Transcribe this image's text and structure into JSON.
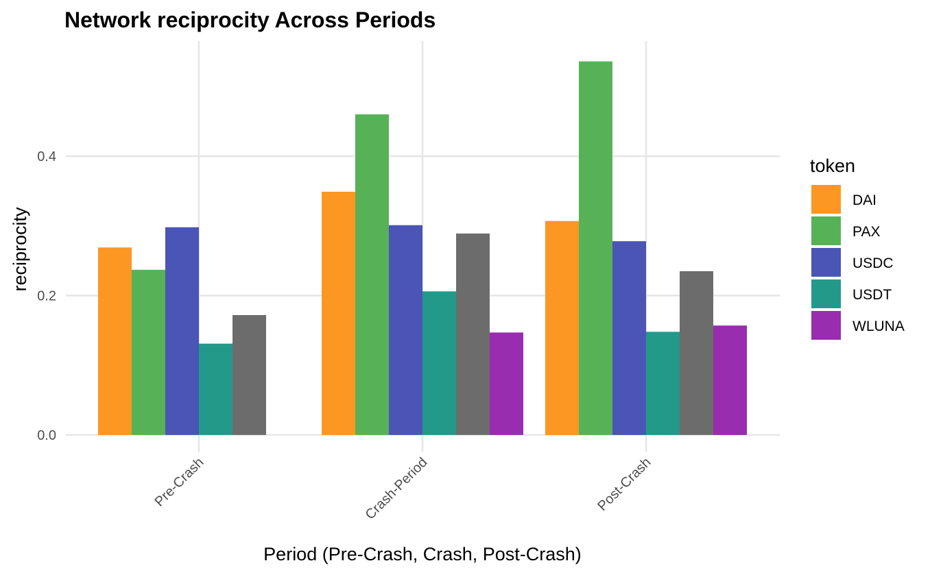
{
  "chart_data": {
    "type": "bar",
    "title": "Network reciprocity Across Periods",
    "xlabel": "Period (Pre-Crash, Crash, Post-Crash)",
    "ylabel": "reciprocity",
    "categories": [
      "Pre-Crash",
      "Crash-Period",
      "Post-Crash"
    ],
    "ylim": [
      0,
      0.56
    ],
    "yticks": [
      0.0,
      0.2,
      0.4
    ],
    "ytick_labels": [
      "0.0",
      "0.2",
      "0.4"
    ],
    "grid": true,
    "legend": {
      "title": "token",
      "position": "right"
    },
    "series": [
      {
        "name": "DAI",
        "color": "#FB9722",
        "values": [
          0.269,
          0.349,
          0.307
        ]
      },
      {
        "name": "PAX",
        "color": "#57B257",
        "values": [
          0.237,
          0.46,
          0.536
        ]
      },
      {
        "name": "USDC",
        "color": "#4A55B5",
        "values": [
          0.298,
          0.301,
          0.278
        ]
      },
      {
        "name": "USDT",
        "color": "#229989",
        "values": [
          0.131,
          0.206,
          0.148
        ]
      },
      {
        "name": "",
        "color": "#6C6C6C",
        "values": [
          0.172,
          0.289,
          0.235
        ]
      },
      {
        "name": "WLUNA",
        "color": "#982DAF",
        "values": [
          null,
          0.147,
          0.157
        ]
      }
    ]
  }
}
